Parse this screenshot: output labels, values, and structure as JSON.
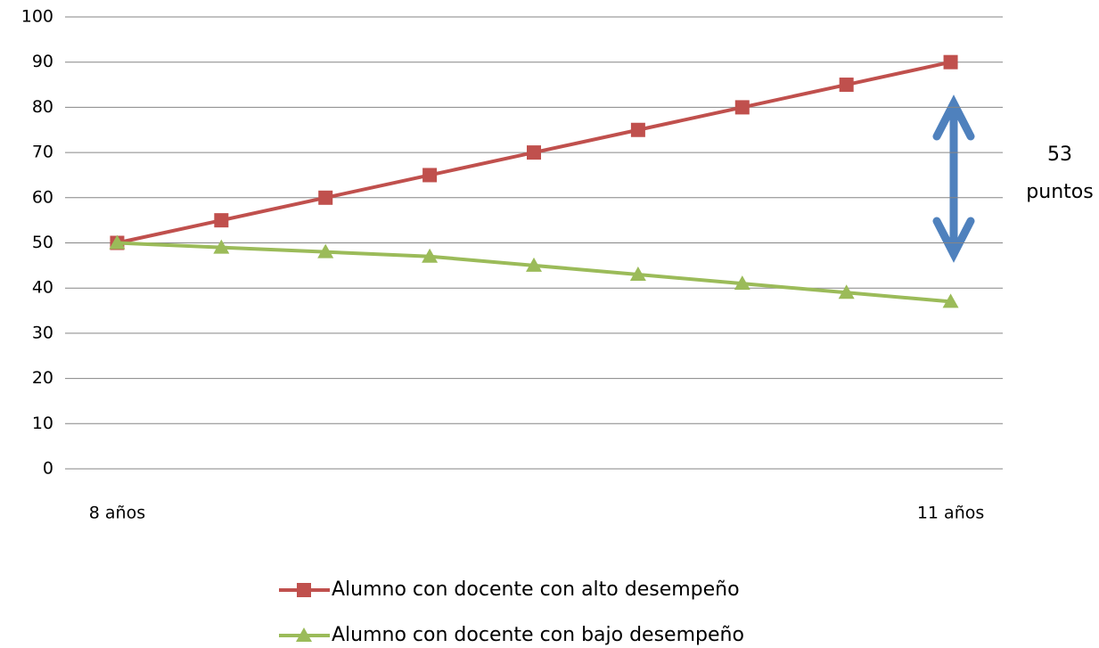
{
  "chart_data": {
    "type": "line",
    "categories": [
      "8 años",
      null,
      null,
      null,
      null,
      null,
      null,
      null,
      "11 años"
    ],
    "series": [
      {
        "name": "Alumno con docente con alto desempeño",
        "color": "#c0504d",
        "marker": "square",
        "values": [
          50,
          55,
          60,
          65,
          70,
          75,
          80,
          85,
          90
        ]
      },
      {
        "name": "Alumno con docente con bajo desempeño",
        "color": "#9bbb59",
        "marker": "triangle",
        "values": [
          50,
          49,
          48,
          47,
          45,
          43,
          41,
          39,
          37
        ]
      }
    ],
    "ylim": [
      0,
      100
    ],
    "yticks": [
      0,
      10,
      20,
      30,
      40,
      50,
      60,
      70,
      80,
      90,
      100
    ],
    "grid": true,
    "annotation": [
      "53",
      "puntos"
    ]
  }
}
